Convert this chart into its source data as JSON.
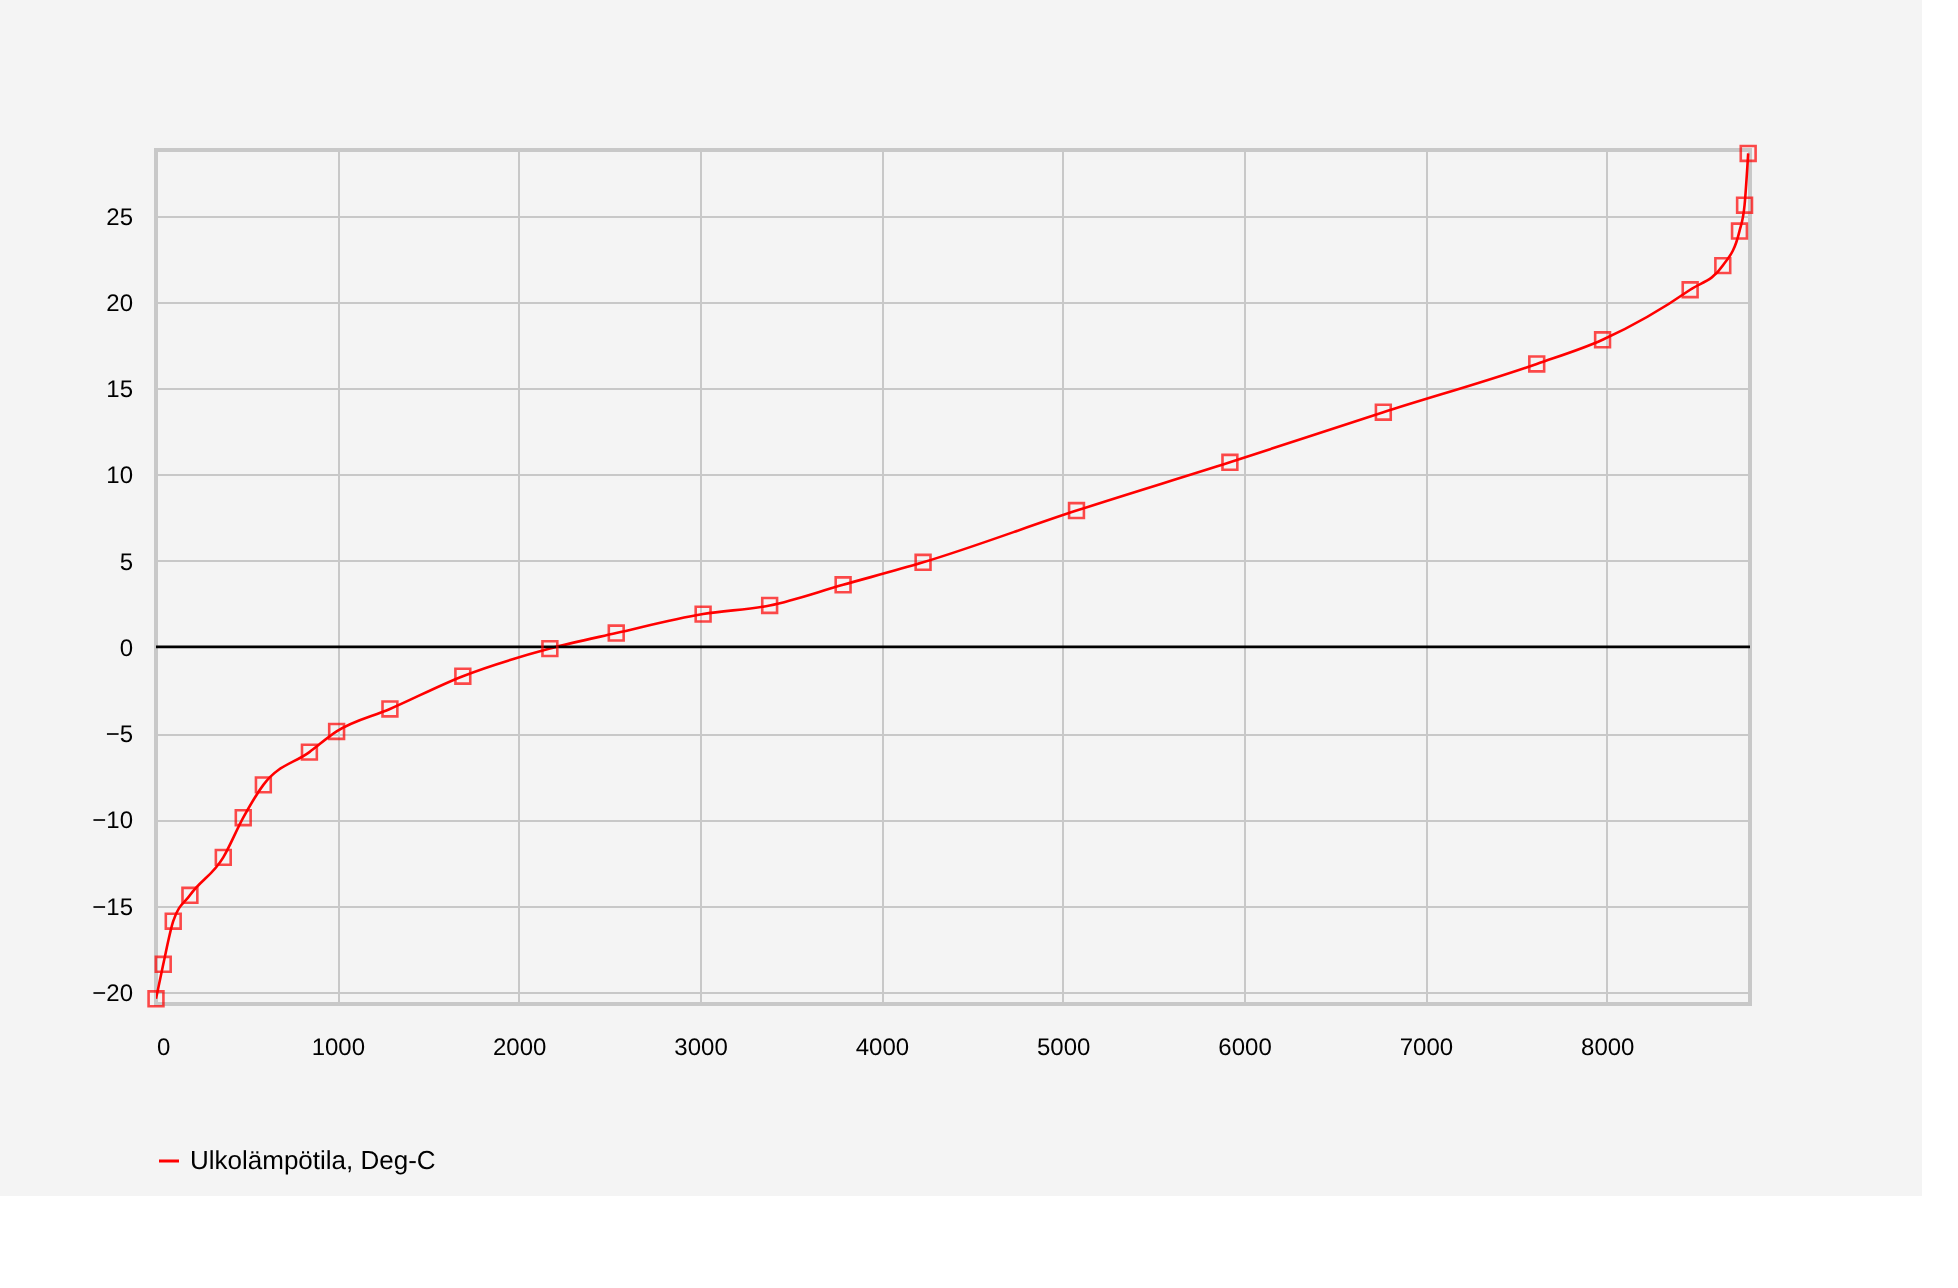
{
  "chart_data": {
    "type": "line",
    "x": [
      0,
      40,
      95,
      187,
      371,
      481,
      592,
      846,
      996,
      1290,
      1692,
      2172,
      2538,
      3017,
      3384,
      3789,
      4230,
      5076,
      5922,
      6768,
      7614,
      7977,
      8460,
      8640,
      8732,
      8760,
      8780
    ],
    "series": [
      {
        "name": "Ulkolämpötila, Deg-C",
        "color": "#ff0000",
        "values": [
          -20.4,
          -18.4,
          -15.9,
          -14.4,
          -12.2,
          -9.9,
          -8.0,
          -6.1,
          -4.9,
          -3.6,
          -1.7,
          -0.1,
          0.8,
          1.9,
          2.4,
          3.6,
          4.9,
          7.9,
          10.7,
          13.6,
          16.4,
          17.8,
          20.7,
          22.1,
          24.1,
          25.6,
          28.6
        ]
      }
    ],
    "xlim": [
      0,
      8790
    ],
    "ylim": [
      -20.7,
      28.8
    ],
    "xticks": [
      0,
      1000,
      2000,
      3000,
      4000,
      5000,
      6000,
      7000,
      8000
    ],
    "yticks": [
      -20,
      -15,
      -10,
      -5,
      0,
      5,
      10,
      15,
      20,
      25
    ],
    "ref_lines": [
      {
        "axis": "y",
        "value": 0,
        "color": "#000000"
      }
    ],
    "grid": true,
    "legend": "bottom left",
    "marker": "square",
    "line_style": "solid"
  }
}
